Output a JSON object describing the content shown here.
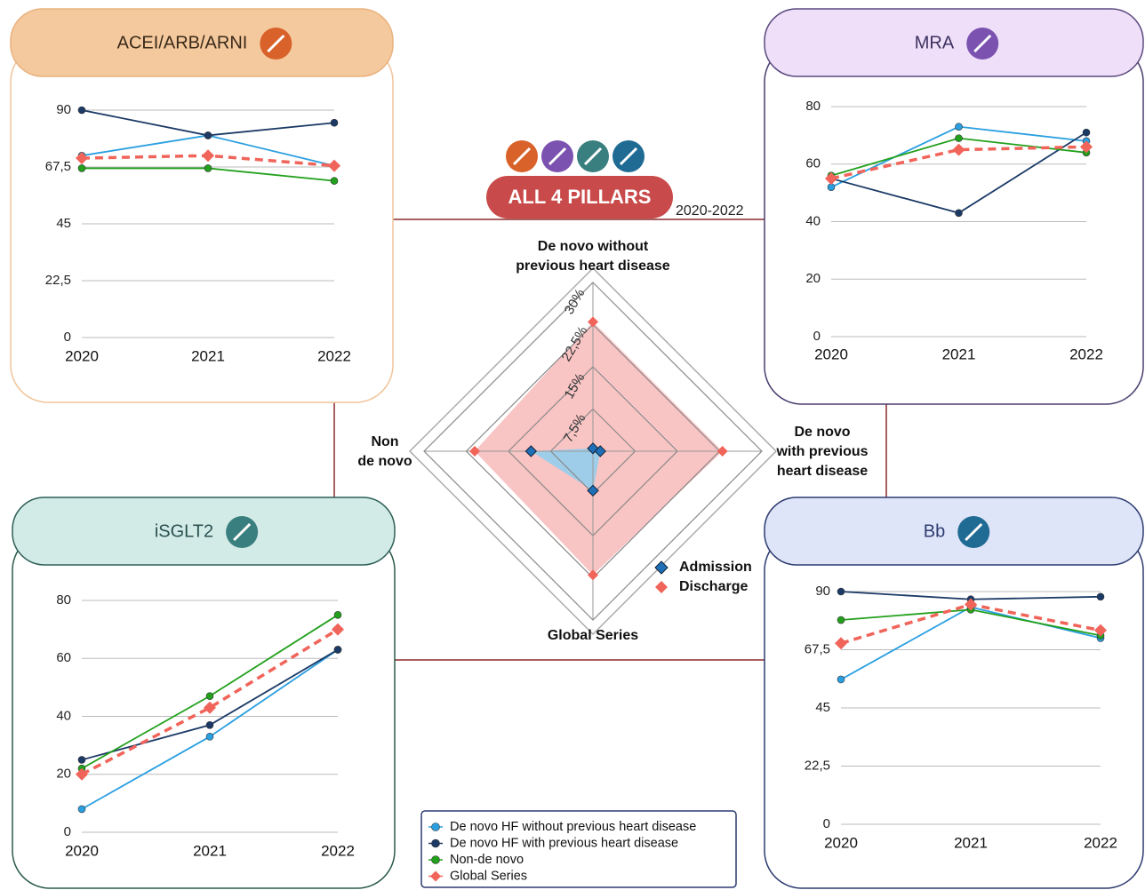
{
  "legend": [
    {
      "name": "De novo HF without previous heart disease",
      "color": "#2a9fe0",
      "marker": "circle",
      "dashed": false
    },
    {
      "name": "De novo HF with previous heart disease",
      "color": "#1b3a66",
      "marker": "circle",
      "dashed": false
    },
    {
      "name": "Non-de novo",
      "color": "#22a01c",
      "marker": "circle",
      "dashed": false
    },
    {
      "name": "Global Series",
      "color": "#f0645a",
      "marker": "diamond",
      "dashed": true
    }
  ],
  "header": {
    "title": "ALL 4 PILLARS",
    "period": "2020-2022"
  },
  "chart_data": [
    {
      "type": "line",
      "title": "ACEI/ARB/ARNI",
      "categories": [
        "2020",
        "2021",
        "2022"
      ],
      "ylim": [
        0,
        90
      ],
      "yticks": [
        0,
        {
          "value": 22.5,
          "label": "22,5"
        },
        45,
        {
          "value": 67.5,
          "label": "67,5"
        },
        90
      ],
      "grid": true,
      "series": [
        {
          "values": [
            72,
            80,
            68
          ]
        },
        {
          "values": [
            90,
            80,
            85
          ]
        },
        {
          "values": [
            67,
            67,
            62
          ]
        },
        {
          "values": [
            71,
            72,
            68
          ]
        }
      ]
    },
    {
      "type": "line",
      "title": "MRA",
      "categories": [
        "2020",
        "2021",
        "2022"
      ],
      "ylim": [
        0,
        80
      ],
      "yticks": [
        0,
        20,
        40,
        60,
        80
      ],
      "grid": true,
      "series": [
        {
          "values": [
            52,
            73,
            68
          ]
        },
        {
          "values": [
            55,
            43,
            71
          ]
        },
        {
          "values": [
            56,
            69,
            64
          ]
        },
        {
          "values": [
            55,
            65,
            66
          ]
        }
      ]
    },
    {
      "type": "line",
      "title": "iSGLT2",
      "categories": [
        "2020",
        "2021",
        "2022"
      ],
      "ylim": [
        0,
        80
      ],
      "yticks": [
        0,
        20,
        40,
        60,
        80
      ],
      "grid": true,
      "series": [
        {
          "values": [
            8,
            33,
            63
          ]
        },
        {
          "values": [
            25,
            37,
            63
          ]
        },
        {
          "values": [
            22,
            47,
            75
          ]
        },
        {
          "values": [
            20,
            43,
            70
          ]
        }
      ]
    },
    {
      "type": "line",
      "title": "Bb",
      "categories": [
        "2020",
        "2021",
        "2022"
      ],
      "ylim": [
        0,
        90
      ],
      "yticks": [
        0,
        {
          "value": 22.5,
          "label": "22,5"
        },
        45,
        {
          "value": 67.5,
          "label": "67,5"
        },
        90
      ],
      "grid": true,
      "series": [
        {
          "values": [
            56,
            84,
            72
          ]
        },
        {
          "values": [
            90,
            87,
            88
          ]
        },
        {
          "values": [
            79,
            83,
            73
          ]
        },
        {
          "values": [
            70,
            85,
            75
          ]
        }
      ]
    },
    {
      "type": "radar",
      "axes": [
        "De novo without\nprevious heart disease",
        "De novo\nwith previous\nheart disease",
        "Global Series",
        "Non\nde novo"
      ],
      "rlim": [
        0,
        30
      ],
      "rticks": [
        {
          "value": 7.5,
          "label": "7,5%"
        },
        {
          "value": 15,
          "label": "15%"
        },
        {
          "value": 22.5,
          "label": "22,5%"
        },
        {
          "value": 30,
          "label": "30%"
        }
      ],
      "series": [
        {
          "name": "Discharge",
          "color": "#f0645a",
          "fill": "#f7b0b0",
          "values": [
            23,
            23,
            22,
            21
          ]
        },
        {
          "name": "Admission",
          "color": "#1f6fb8",
          "fill": "#7fd0f5",
          "values": [
            0.5,
            1.3,
            7,
            11
          ]
        }
      ]
    }
  ]
}
